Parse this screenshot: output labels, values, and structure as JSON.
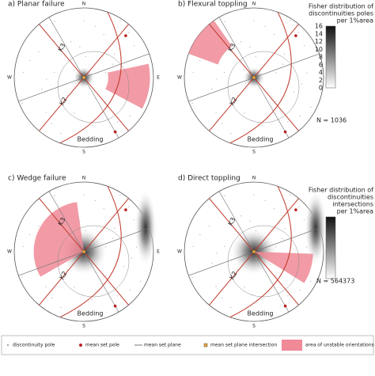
{
  "panels": [
    {
      "title": "a)  Planar failure",
      "compass": [
        "N",
        "E",
        "S",
        "W"
      ],
      "sets": [
        "K3",
        "K2",
        "Bedding"
      ]
    },
    {
      "title": "b)  Flexural toppling",
      "compass": [
        "N",
        "E",
        "S",
        "W"
      ],
      "sets": [
        "K3",
        "K2",
        "Bedding"
      ]
    },
    {
      "title": "c)  Wedge failure",
      "compass": [
        "N",
        "E",
        "S",
        "W"
      ],
      "sets": [
        "K3",
        "K2",
        "Bedding"
      ]
    },
    {
      "title": "d)  Direct toppling",
      "compass": [
        "N",
        "E",
        "S",
        "W"
      ],
      "sets": [
        "K3",
        "K2",
        "Bedding"
      ]
    }
  ],
  "colorbars": [
    {
      "title": [
        "Fisher distribution of",
        "discontinuities poles",
        "per 1%area"
      ],
      "ticks": [
        16,
        14,
        12,
        10,
        8,
        6,
        4,
        2,
        0
      ],
      "count": "N = 1036"
    },
    {
      "title": [
        "Fisher distribution of",
        "discontinuities",
        "intersections",
        "per 1%area"
      ],
      "count": "N = 564373"
    }
  ],
  "legend": [
    "discontinuity pole",
    "mean set pole",
    "mean set plane",
    "mean set plane intersection",
    "area of unstable orientations"
  ]
}
